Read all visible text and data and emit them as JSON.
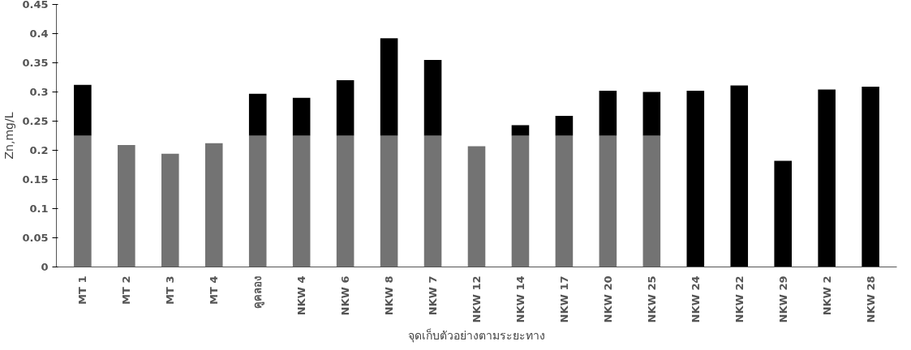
{
  "chart_data": {
    "type": "bar",
    "stacked": true,
    "xlabel": "จุดเก็บตัวอย่างตามระยะทาง",
    "ylabel": "Zn,mg/L",
    "categories": [
      "MT 1",
      "MT 2",
      "MT 3",
      "MT 4",
      "คูคลอง",
      "NKW 4",
      "NKW 6",
      "NKW 8",
      "NKW 7",
      "NKW 12",
      "NKW 14",
      "NKW 17",
      "NKW 20",
      "NKW 25",
      "NKW 24",
      "NKW 22",
      "NKW 29",
      "NKW 2",
      "NKW 28"
    ],
    "series": [
      {
        "color": "#737373",
        "values": [
          0.225,
          0.209,
          0.194,
          0.212,
          0.225,
          0.225,
          0.225,
          0.225,
          0.225,
          0.207,
          0.225,
          0.225,
          0.225,
          0.225,
          null,
          null,
          null,
          null,
          null
        ]
      },
      {
        "color": "#000000",
        "values": [
          0.087,
          null,
          null,
          null,
          0.072,
          0.065,
          0.095,
          0.167,
          0.13,
          null,
          0.018,
          0.034,
          0.077,
          0.075,
          0.302,
          0.311,
          0.182,
          0.304,
          0.309
        ]
      }
    ],
    "ylim": [
      0,
      0.45
    ],
    "yticks": [
      0,
      0.05,
      0.1,
      0.15,
      0.2,
      0.25,
      0.3,
      0.35,
      0.4,
      0.45
    ],
    "grid": false
  }
}
